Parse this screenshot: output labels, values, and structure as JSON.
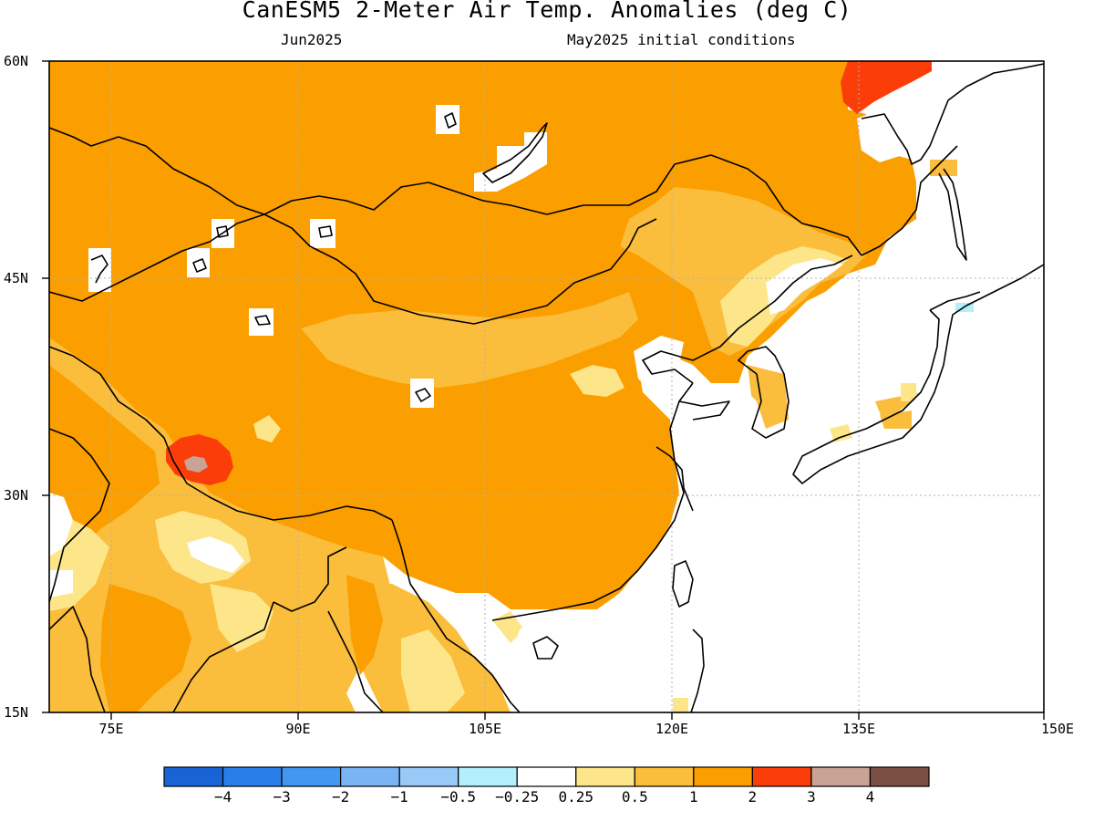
{
  "title": "CanESM5 2-Meter Air Temp. Anomalies (deg C)",
  "subtitle_left": "Jun2025",
  "subtitle_right": "May2025 initial conditions",
  "lat_labels": [
    "60N",
    "45N",
    "30N",
    "15N"
  ],
  "lon_labels": [
    "75E",
    "90E",
    "105E",
    "120E",
    "135E",
    "150E"
  ],
  "colorbar": {
    "colors": [
      "#1863d6",
      "#2a7eea",
      "#4397f0",
      "#79b5f5",
      "#98c9f7",
      "#b3eefb",
      "#ffffff",
      "#fde68a",
      "#fbbd3c",
      "#fb9f00",
      "#fb3e09",
      "#c9a395",
      "#7b5044"
    ],
    "labels": [
      "−4",
      "−3",
      "−2",
      "−1",
      "−0.5",
      "−0.25",
      "0.25",
      "0.5",
      "1",
      "2",
      "3",
      "4"
    ]
  },
  "colors": {
    "anom_2_3": "#fb3e09",
    "anom_1_2": "#fb9f00",
    "anom_05_1": "#fbbd3c",
    "anom_025_05": "#fde68a",
    "anom_3_4": "#c9a395",
    "neutral": "#ffffff",
    "cool_025": "#b3eefb"
  }
}
